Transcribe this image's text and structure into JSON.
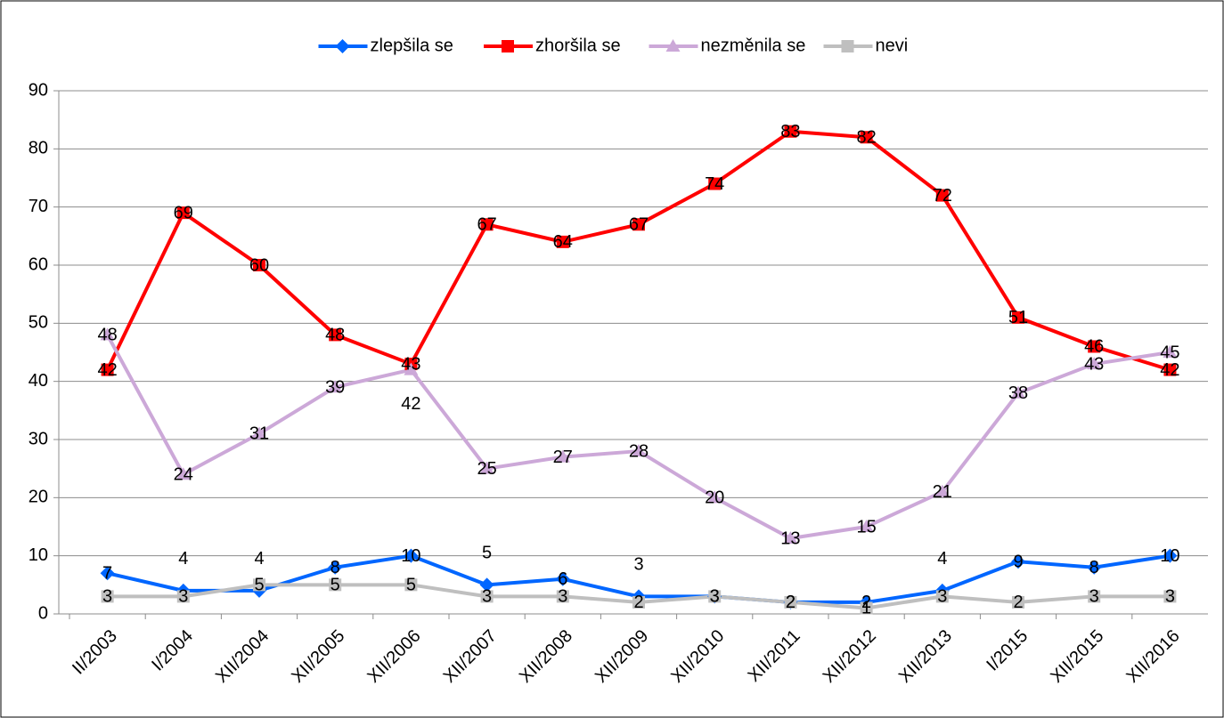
{
  "chart_data": {
    "type": "line",
    "categories": [
      "II/2003",
      "I/2004",
      "XII/2004",
      "XII/2005",
      "XII/2006",
      "XII/2007",
      "XII/2008",
      "XII/2009",
      "XII/2010",
      "XII/2011",
      "XII/2012",
      "XII/2013",
      "I/2015",
      "XII/2015",
      "XII/2016"
    ],
    "series": [
      {
        "name": "zlepšila se",
        "color": "#0066ff",
        "marker": "diamond",
        "values": [
          7,
          4,
          4,
          8,
          10,
          5,
          6,
          3,
          3,
          2,
          2,
          4,
          9,
          8,
          10
        ]
      },
      {
        "name": "zhoršila se",
        "color": "#ff0000",
        "marker": "square",
        "values": [
          42,
          69,
          60,
          48,
          43,
          67,
          64,
          67,
          74,
          83,
          82,
          72,
          51,
          46,
          42
        ]
      },
      {
        "name": "nezměnila se",
        "color": "#cca8d8",
        "marker": "triangle",
        "values": [
          48,
          24,
          31,
          39,
          42,
          25,
          27,
          28,
          20,
          13,
          15,
          21,
          38,
          43,
          45
        ]
      },
      {
        "name": "nevi",
        "color": "#bfbfbf",
        "marker": "square",
        "values": [
          3,
          3,
          5,
          5,
          5,
          3,
          3,
          2,
          3,
          2,
          1,
          3,
          2,
          3,
          3
        ]
      }
    ],
    "ylim": [
      0,
      90
    ],
    "yticks": [
      0,
      10,
      20,
      30,
      40,
      50,
      60,
      70,
      80,
      90
    ],
    "grid": true,
    "legend": "top"
  }
}
